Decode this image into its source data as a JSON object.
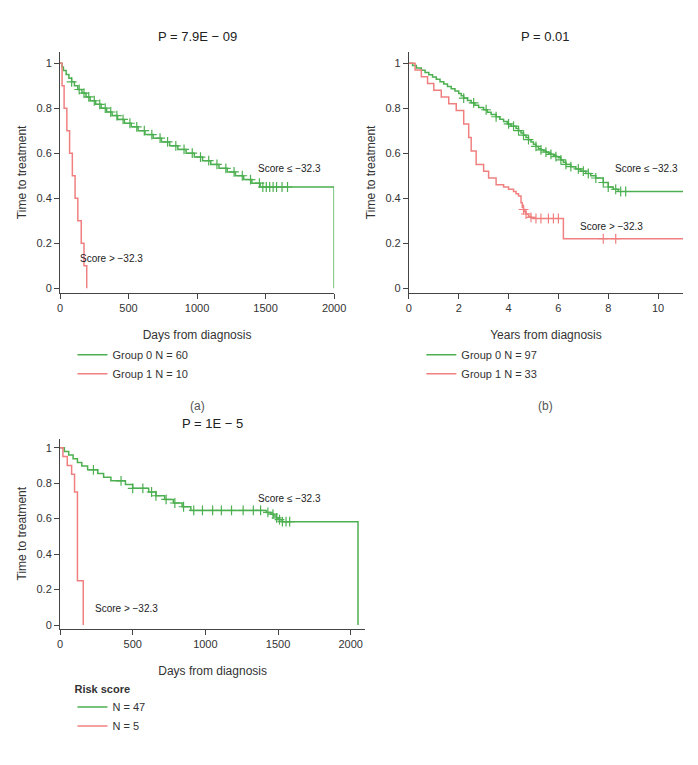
{
  "chart_data": [
    {
      "type": "line",
      "title": "P = 7.9E − 09",
      "x_label": "Days from diagnosis",
      "y_label": "Time to treatment",
      "xlim": [
        0,
        2000
      ],
      "ylim": [
        -0.02,
        1.05
      ],
      "xticks": [
        0,
        500,
        1000,
        1500,
        2000
      ],
      "yticks": [
        0.0,
        0.2,
        0.4,
        0.6,
        0.8,
        1.0
      ],
      "grid": false,
      "panel_label": "(a)",
      "annotations": [
        {
          "text": "Score ≤ −32.3",
          "x": 1430,
          "y": 0.5
        },
        {
          "text": "Score > −32.3",
          "x": 130,
          "y": 0.1
        }
      ],
      "series": [
        {
          "name": "Group 0 N = 60",
          "color": "#4caf50",
          "line_style": "step",
          "x": [
            0,
            15,
            25,
            45,
            65,
            85,
            105,
            130,
            160,
            190,
            220,
            260,
            300,
            340,
            380,
            420,
            470,
            520,
            570,
            620,
            680,
            740,
            800,
            860,
            920,
            980,
            1040,
            1100,
            1160,
            1220,
            1280,
            1340,
            1400,
            1460,
            1500,
            1520,
            1540,
            1560,
            1600,
            1650,
            1700,
            1750,
            1800,
            1850,
            1900,
            1950,
            2000,
            2000
          ],
          "values": [
            1.0,
            0.983,
            0.967,
            0.95,
            0.933,
            0.917,
            0.9,
            0.883,
            0.867,
            0.85,
            0.833,
            0.817,
            0.8,
            0.783,
            0.767,
            0.75,
            0.733,
            0.717,
            0.7,
            0.683,
            0.667,
            0.65,
            0.633,
            0.617,
            0.6,
            0.583,
            0.567,
            0.55,
            0.533,
            0.517,
            0.5,
            0.483,
            0.467,
            0.45,
            0.45,
            0.45,
            0.45,
            0.45,
            0.45,
            0.45,
            0.45,
            0.45,
            0.45,
            0.45,
            0.45,
            0.45,
            0.45,
            0.0
          ]
        },
        {
          "type": "scatter",
          "marker": "+",
          "color": "#4caf50",
          "x": [
            85,
            140,
            175,
            210,
            250,
            290,
            330,
            370,
            415,
            460,
            510,
            560,
            615,
            670,
            730,
            785,
            845,
            905,
            965,
            1025,
            1085,
            1145,
            1210,
            1270,
            1330,
            1390,
            1455,
            1480,
            1505,
            1530,
            1555,
            1580,
            1620,
            1660
          ],
          "values": [
            0.917,
            0.883,
            0.867,
            0.85,
            0.833,
            0.817,
            0.8,
            0.783,
            0.767,
            0.75,
            0.733,
            0.717,
            0.7,
            0.683,
            0.667,
            0.65,
            0.633,
            0.617,
            0.6,
            0.583,
            0.567,
            0.55,
            0.533,
            0.517,
            0.5,
            0.483,
            0.467,
            0.45,
            0.45,
            0.45,
            0.45,
            0.45,
            0.45,
            0.45
          ]
        },
        {
          "name": "Group 1 N = 10",
          "color": "#f08080",
          "line_style": "step",
          "x": [
            0,
            15,
            30,
            50,
            70,
            90,
            110,
            130,
            155,
            175,
            195
          ],
          "values": [
            1.0,
            0.9,
            0.8,
            0.7,
            0.6,
            0.5,
            0.4,
            0.3,
            0.2,
            0.1,
            0.0
          ]
        }
      ]
    },
    {
      "type": "line",
      "title": "P = 0.01",
      "x_label": "Years from diagnosis",
      "y_label": "Time to treatment",
      "xlim": [
        0,
        11
      ],
      "ylim": [
        -0.02,
        1.05
      ],
      "xticks": [
        0,
        2,
        4,
        6,
        8,
        10
      ],
      "yticks": [
        0.0,
        0.2,
        0.4,
        0.6,
        0.8,
        1.0
      ],
      "grid": false,
      "panel_label": "(b)",
      "annotations": [
        {
          "text": "Score ≤ −32.3",
          "x": 8.2,
          "y": 0.5
        },
        {
          "text": "Score > −32.3",
          "x": 6.8,
          "y": 0.24
        }
      ],
      "series": [
        {
          "name": "Group 0 N = 97",
          "color": "#4caf50",
          "line_style": "step",
          "x": [
            0,
            0.15,
            0.3,
            0.5,
            0.65,
            0.8,
            0.95,
            1.1,
            1.25,
            1.4,
            1.55,
            1.7,
            1.85,
            2.0,
            2.1,
            2.2,
            2.35,
            2.5,
            2.65,
            2.8,
            3.0,
            3.15,
            3.3,
            3.5,
            3.65,
            3.8,
            3.95,
            4.1,
            4.2,
            4.3,
            4.4,
            4.5,
            4.6,
            4.7,
            4.8,
            4.9,
            5.0,
            5.1,
            5.2,
            5.3,
            5.4,
            5.5,
            5.6,
            5.7,
            5.8,
            5.9,
            6.0,
            6.1,
            6.2,
            6.3,
            6.5,
            6.7,
            6.9,
            7.1,
            7.3,
            7.5,
            7.8,
            8.0,
            8.2,
            8.4,
            8.6,
            9.0,
            10.0,
            11.0
          ],
          "values": [
            1.0,
            0.99,
            0.979,
            0.969,
            0.959,
            0.948,
            0.938,
            0.928,
            0.917,
            0.907,
            0.896,
            0.886,
            0.876,
            0.865,
            0.855,
            0.845,
            0.834,
            0.824,
            0.813,
            0.803,
            0.793,
            0.782,
            0.772,
            0.762,
            0.751,
            0.741,
            0.73,
            0.72,
            0.72,
            0.71,
            0.7,
            0.69,
            0.68,
            0.67,
            0.66,
            0.65,
            0.64,
            0.63,
            0.62,
            0.615,
            0.61,
            0.605,
            0.6,
            0.595,
            0.59,
            0.585,
            0.58,
            0.57,
            0.56,
            0.55,
            0.54,
            0.53,
            0.52,
            0.51,
            0.5,
            0.49,
            0.47,
            0.45,
            0.44,
            0.43,
            0.43,
            0.43,
            0.43,
            0.43
          ]
        },
        {
          "type": "scatter",
          "marker": "+",
          "color": "#4caf50",
          "x": [
            2.2,
            2.6,
            3.1,
            3.5,
            4.0,
            4.2,
            4.4,
            4.6,
            4.8,
            5.1,
            5.3,
            5.5,
            5.7,
            5.9,
            6.1,
            6.3,
            6.5,
            6.8,
            7.0,
            7.2,
            7.5,
            7.8,
            8.0,
            8.3,
            8.5,
            8.7
          ],
          "values": [
            0.845,
            0.824,
            0.793,
            0.762,
            0.73,
            0.72,
            0.7,
            0.68,
            0.66,
            0.63,
            0.615,
            0.605,
            0.595,
            0.585,
            0.57,
            0.55,
            0.54,
            0.53,
            0.52,
            0.51,
            0.49,
            0.47,
            0.45,
            0.44,
            0.43,
            0.43
          ]
        },
        {
          "name": "Group 1 N = 33",
          "color": "#f08080",
          "line_style": "step",
          "x": [
            0,
            0.25,
            0.5,
            0.75,
            1.0,
            1.3,
            1.6,
            1.9,
            2.2,
            2.4,
            2.5,
            2.7,
            3.0,
            3.2,
            3.5,
            3.8,
            4.0,
            4.2,
            4.3,
            4.4,
            4.5,
            4.55,
            4.6,
            4.65,
            4.7,
            4.8,
            4.9,
            5.0,
            5.2,
            5.5,
            6.0,
            6.2,
            7.0,
            8.0,
            9.0,
            10.0,
            11.0
          ],
          "values": [
            1.0,
            0.97,
            0.94,
            0.91,
            0.88,
            0.85,
            0.82,
            0.79,
            0.73,
            0.67,
            0.61,
            0.55,
            0.52,
            0.49,
            0.46,
            0.45,
            0.44,
            0.43,
            0.42,
            0.41,
            0.38,
            0.36,
            0.35,
            0.34,
            0.33,
            0.32,
            0.315,
            0.31,
            0.31,
            0.31,
            0.31,
            0.22,
            0.22,
            0.22,
            0.22,
            0.22,
            0.22
          ]
        },
        {
          "type": "scatter",
          "marker": "+",
          "color": "#f08080",
          "x": [
            4.6,
            4.7,
            4.9,
            5.1,
            5.3,
            5.6,
            5.8,
            6.0,
            7.8,
            8.3
          ],
          "values": [
            0.35,
            0.33,
            0.315,
            0.31,
            0.31,
            0.31,
            0.31,
            0.31,
            0.22,
            0.22
          ]
        }
      ]
    },
    {
      "type": "line",
      "title": "P = 1E − 5",
      "x_label": "Days from diagnosis",
      "y_label": "Time to treatment",
      "xlim": [
        0,
        2100
      ],
      "ylim": [
        -0.02,
        1.05
      ],
      "xticks": [
        0,
        500,
        1000,
        1500,
        2000
      ],
      "yticks": [
        0.0,
        0.2,
        0.4,
        0.6,
        0.8,
        1.0
      ],
      "grid": false,
      "legend_title": "Risk score",
      "annotations": [
        {
          "text": "Score ≤ −32.3",
          "x": 1350,
          "y": 0.67
        },
        {
          "text": "Score > −32.3",
          "x": 230,
          "y": 0.05
        }
      ],
      "series": [
        {
          "name": "N = 47",
          "color": "#4caf50",
          "line_style": "step",
          "x": [
            0,
            30,
            60,
            90,
            120,
            150,
            190,
            230,
            260,
            300,
            350,
            400,
            450,
            500,
            560,
            610,
            660,
            720,
            780,
            840,
            900,
            960,
            1020,
            1080,
            1140,
            1200,
            1270,
            1330,
            1380,
            1420,
            1450,
            1470,
            1490,
            1510,
            1530,
            1560,
            1600,
            1650,
            1700,
            1800,
            1900,
            2000,
            2050
          ],
          "values": [
            1.0,
            0.979,
            0.958,
            0.938,
            0.917,
            0.896,
            0.875,
            0.875,
            0.854,
            0.833,
            0.813,
            0.813,
            0.792,
            0.771,
            0.771,
            0.75,
            0.729,
            0.708,
            0.688,
            0.667,
            0.646,
            0.646,
            0.646,
            0.646,
            0.646,
            0.646,
            0.646,
            0.646,
            0.646,
            0.635,
            0.625,
            0.615,
            0.604,
            0.594,
            0.583,
            0.583,
            0.583,
            0.583,
            0.583,
            0.583,
            0.583,
            0.583,
            0.0
          ]
        },
        {
          "type": "scatter",
          "marker": "+",
          "color": "#4caf50",
          "x": [
            230,
            420,
            500,
            570,
            630,
            660,
            730,
            790,
            850,
            920,
            980,
            1050,
            1110,
            1180,
            1260,
            1330,
            1380,
            1430,
            1465,
            1490,
            1510,
            1530,
            1555,
            1580
          ],
          "values": [
            0.875,
            0.813,
            0.771,
            0.771,
            0.75,
            0.729,
            0.708,
            0.688,
            0.667,
            0.646,
            0.646,
            0.646,
            0.646,
            0.646,
            0.646,
            0.646,
            0.646,
            0.635,
            0.625,
            0.604,
            0.594,
            0.583,
            0.583,
            0.583
          ]
        },
        {
          "name": "N = 5",
          "color": "#f08080",
          "line_style": "step",
          "x": [
            0,
            20,
            50,
            80,
            100,
            120,
            160
          ],
          "values": [
            1.0,
            0.95,
            0.9,
            0.85,
            0.75,
            0.25,
            0.0
          ]
        }
      ]
    }
  ]
}
